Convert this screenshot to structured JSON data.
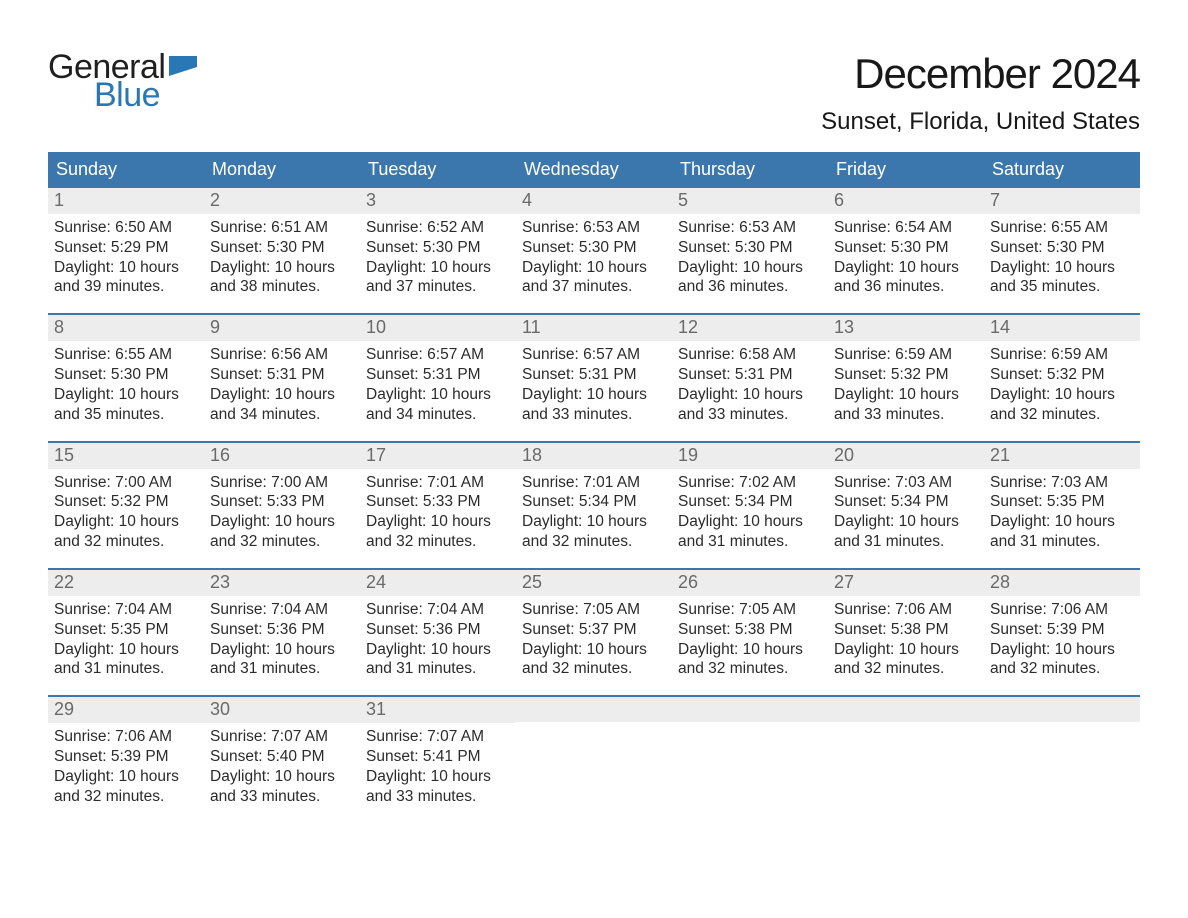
{
  "logo": {
    "text1": "General",
    "text2": "Blue",
    "flag_color": "#2978b5"
  },
  "title": "December 2024",
  "location": "Sunset, Florida, United States",
  "colors": {
    "header_bg": "#3b77ad",
    "header_text": "#ffffff",
    "daynum_bg": "#ededed",
    "daynum_text": "#6a6a6a",
    "body_text": "#2b2b2b",
    "week_sep": "#3b77ad",
    "page_bg": "#ffffff"
  },
  "typography": {
    "title_fontsize": 42,
    "location_fontsize": 24,
    "header_fontsize": 18,
    "daynum_fontsize": 18,
    "body_fontsize": 15.5,
    "logo_fontsize": 34
  },
  "weekdays": [
    "Sunday",
    "Monday",
    "Tuesday",
    "Wednesday",
    "Thursday",
    "Friday",
    "Saturday"
  ],
  "weeks": [
    [
      {
        "n": "1",
        "sunrise": "Sunrise: 6:50 AM",
        "sunset": "Sunset: 5:29 PM",
        "d1": "Daylight: 10 hours",
        "d2": "and 39 minutes."
      },
      {
        "n": "2",
        "sunrise": "Sunrise: 6:51 AM",
        "sunset": "Sunset: 5:30 PM",
        "d1": "Daylight: 10 hours",
        "d2": "and 38 minutes."
      },
      {
        "n": "3",
        "sunrise": "Sunrise: 6:52 AM",
        "sunset": "Sunset: 5:30 PM",
        "d1": "Daylight: 10 hours",
        "d2": "and 37 minutes."
      },
      {
        "n": "4",
        "sunrise": "Sunrise: 6:53 AM",
        "sunset": "Sunset: 5:30 PM",
        "d1": "Daylight: 10 hours",
        "d2": "and 37 minutes."
      },
      {
        "n": "5",
        "sunrise": "Sunrise: 6:53 AM",
        "sunset": "Sunset: 5:30 PM",
        "d1": "Daylight: 10 hours",
        "d2": "and 36 minutes."
      },
      {
        "n": "6",
        "sunrise": "Sunrise: 6:54 AM",
        "sunset": "Sunset: 5:30 PM",
        "d1": "Daylight: 10 hours",
        "d2": "and 36 minutes."
      },
      {
        "n": "7",
        "sunrise": "Sunrise: 6:55 AM",
        "sunset": "Sunset: 5:30 PM",
        "d1": "Daylight: 10 hours",
        "d2": "and 35 minutes."
      }
    ],
    [
      {
        "n": "8",
        "sunrise": "Sunrise: 6:55 AM",
        "sunset": "Sunset: 5:30 PM",
        "d1": "Daylight: 10 hours",
        "d2": "and 35 minutes."
      },
      {
        "n": "9",
        "sunrise": "Sunrise: 6:56 AM",
        "sunset": "Sunset: 5:31 PM",
        "d1": "Daylight: 10 hours",
        "d2": "and 34 minutes."
      },
      {
        "n": "10",
        "sunrise": "Sunrise: 6:57 AM",
        "sunset": "Sunset: 5:31 PM",
        "d1": "Daylight: 10 hours",
        "d2": "and 34 minutes."
      },
      {
        "n": "11",
        "sunrise": "Sunrise: 6:57 AM",
        "sunset": "Sunset: 5:31 PM",
        "d1": "Daylight: 10 hours",
        "d2": "and 33 minutes."
      },
      {
        "n": "12",
        "sunrise": "Sunrise: 6:58 AM",
        "sunset": "Sunset: 5:31 PM",
        "d1": "Daylight: 10 hours",
        "d2": "and 33 minutes."
      },
      {
        "n": "13",
        "sunrise": "Sunrise: 6:59 AM",
        "sunset": "Sunset: 5:32 PM",
        "d1": "Daylight: 10 hours",
        "d2": "and 33 minutes."
      },
      {
        "n": "14",
        "sunrise": "Sunrise: 6:59 AM",
        "sunset": "Sunset: 5:32 PM",
        "d1": "Daylight: 10 hours",
        "d2": "and 32 minutes."
      }
    ],
    [
      {
        "n": "15",
        "sunrise": "Sunrise: 7:00 AM",
        "sunset": "Sunset: 5:32 PM",
        "d1": "Daylight: 10 hours",
        "d2": "and 32 minutes."
      },
      {
        "n": "16",
        "sunrise": "Sunrise: 7:00 AM",
        "sunset": "Sunset: 5:33 PM",
        "d1": "Daylight: 10 hours",
        "d2": "and 32 minutes."
      },
      {
        "n": "17",
        "sunrise": "Sunrise: 7:01 AM",
        "sunset": "Sunset: 5:33 PM",
        "d1": "Daylight: 10 hours",
        "d2": "and 32 minutes."
      },
      {
        "n": "18",
        "sunrise": "Sunrise: 7:01 AM",
        "sunset": "Sunset: 5:34 PM",
        "d1": "Daylight: 10 hours",
        "d2": "and 32 minutes."
      },
      {
        "n": "19",
        "sunrise": "Sunrise: 7:02 AM",
        "sunset": "Sunset: 5:34 PM",
        "d1": "Daylight: 10 hours",
        "d2": "and 31 minutes."
      },
      {
        "n": "20",
        "sunrise": "Sunrise: 7:03 AM",
        "sunset": "Sunset: 5:34 PM",
        "d1": "Daylight: 10 hours",
        "d2": "and 31 minutes."
      },
      {
        "n": "21",
        "sunrise": "Sunrise: 7:03 AM",
        "sunset": "Sunset: 5:35 PM",
        "d1": "Daylight: 10 hours",
        "d2": "and 31 minutes."
      }
    ],
    [
      {
        "n": "22",
        "sunrise": "Sunrise: 7:04 AM",
        "sunset": "Sunset: 5:35 PM",
        "d1": "Daylight: 10 hours",
        "d2": "and 31 minutes."
      },
      {
        "n": "23",
        "sunrise": "Sunrise: 7:04 AM",
        "sunset": "Sunset: 5:36 PM",
        "d1": "Daylight: 10 hours",
        "d2": "and 31 minutes."
      },
      {
        "n": "24",
        "sunrise": "Sunrise: 7:04 AM",
        "sunset": "Sunset: 5:36 PM",
        "d1": "Daylight: 10 hours",
        "d2": "and 31 minutes."
      },
      {
        "n": "25",
        "sunrise": "Sunrise: 7:05 AM",
        "sunset": "Sunset: 5:37 PM",
        "d1": "Daylight: 10 hours",
        "d2": "and 32 minutes."
      },
      {
        "n": "26",
        "sunrise": "Sunrise: 7:05 AM",
        "sunset": "Sunset: 5:38 PM",
        "d1": "Daylight: 10 hours",
        "d2": "and 32 minutes."
      },
      {
        "n": "27",
        "sunrise": "Sunrise: 7:06 AM",
        "sunset": "Sunset: 5:38 PM",
        "d1": "Daylight: 10 hours",
        "d2": "and 32 minutes."
      },
      {
        "n": "28",
        "sunrise": "Sunrise: 7:06 AM",
        "sunset": "Sunset: 5:39 PM",
        "d1": "Daylight: 10 hours",
        "d2": "and 32 minutes."
      }
    ],
    [
      {
        "n": "29",
        "sunrise": "Sunrise: 7:06 AM",
        "sunset": "Sunset: 5:39 PM",
        "d1": "Daylight: 10 hours",
        "d2": "and 32 minutes."
      },
      {
        "n": "30",
        "sunrise": "Sunrise: 7:07 AM",
        "sunset": "Sunset: 5:40 PM",
        "d1": "Daylight: 10 hours",
        "d2": "and 33 minutes."
      },
      {
        "n": "31",
        "sunrise": "Sunrise: 7:07 AM",
        "sunset": "Sunset: 5:41 PM",
        "d1": "Daylight: 10 hours",
        "d2": "and 33 minutes."
      },
      null,
      null,
      null,
      null
    ]
  ]
}
